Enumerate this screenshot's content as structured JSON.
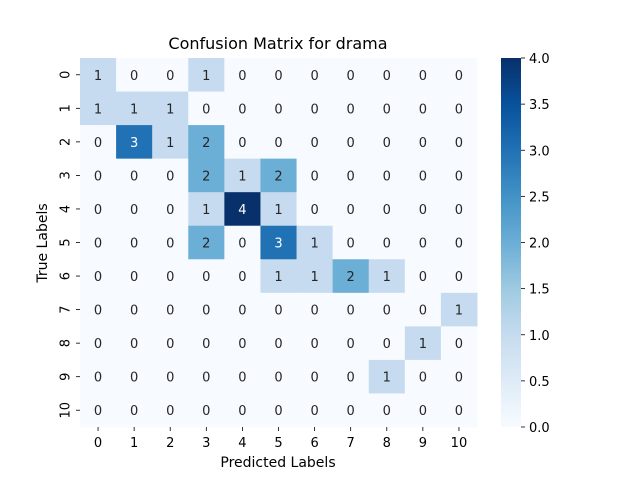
{
  "chart_data": {
    "type": "heatmap",
    "title": "Confusion Matrix for drama",
    "xlabel": "Predicted Labels",
    "ylabel": "True Labels",
    "x_categories": [
      "0",
      "1",
      "2",
      "3",
      "4",
      "5",
      "6",
      "7",
      "8",
      "9",
      "10"
    ],
    "y_categories": [
      "0",
      "1",
      "2",
      "3",
      "4",
      "5",
      "6",
      "7",
      "8",
      "9",
      "10"
    ],
    "values": [
      [
        1,
        0,
        0,
        1,
        0,
        0,
        0,
        0,
        0,
        0,
        0
      ],
      [
        1,
        1,
        1,
        0,
        0,
        0,
        0,
        0,
        0,
        0,
        0
      ],
      [
        0,
        3,
        1,
        2,
        0,
        0,
        0,
        0,
        0,
        0,
        0
      ],
      [
        0,
        0,
        0,
        2,
        1,
        2,
        0,
        0,
        0,
        0,
        0
      ],
      [
        0,
        0,
        0,
        1,
        4,
        1,
        0,
        0,
        0,
        0,
        0
      ],
      [
        0,
        0,
        0,
        2,
        0,
        3,
        1,
        0,
        0,
        0,
        0
      ],
      [
        0,
        0,
        0,
        0,
        0,
        1,
        1,
        2,
        1,
        0,
        0
      ],
      [
        0,
        0,
        0,
        0,
        0,
        0,
        0,
        0,
        0,
        0,
        1
      ],
      [
        0,
        0,
        0,
        0,
        0,
        0,
        0,
        0,
        0,
        1,
        0
      ],
      [
        0,
        0,
        0,
        0,
        0,
        0,
        0,
        0,
        1,
        0,
        0
      ],
      [
        0,
        0,
        0,
        0,
        0,
        0,
        0,
        0,
        0,
        0,
        0
      ]
    ],
    "colorbar": {
      "min": 0.0,
      "max": 4.0,
      "ticks": [
        "0.0",
        "0.5",
        "1.0",
        "1.5",
        "2.0",
        "2.5",
        "3.0",
        "3.5",
        "4.0"
      ],
      "colormap": "Blues",
      "low_color": "#f7fbff",
      "high_color": "#08306b"
    },
    "annotations": true,
    "grid": false
  }
}
